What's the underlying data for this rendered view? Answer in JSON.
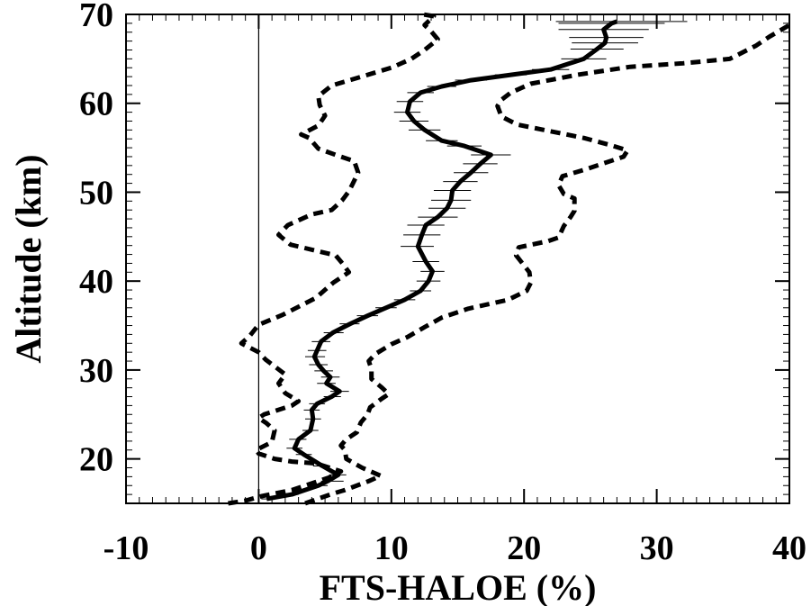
{
  "chart_data": {
    "type": "line",
    "title": "",
    "xlabel": "FTS-HALOE (%)",
    "ylabel": "Altitude (km)",
    "xlim": [
      -10,
      40
    ],
    "ylim": [
      15,
      70
    ],
    "xticks": [
      -10,
      0,
      10,
      20,
      30,
      40
    ],
    "yticks": [
      20,
      30,
      40,
      50,
      60,
      70
    ],
    "grid": false,
    "legend": "none",
    "reference_line": {
      "x": 0
    },
    "series": [
      {
        "style": "solid",
        "color": "#000000",
        "points": [
          [
            0.6,
            15.5
          ],
          [
            2.5,
            16
          ],
          [
            4.5,
            17
          ],
          [
            5.2,
            17.5
          ],
          [
            6.0,
            18.2
          ],
          [
            4.8,
            19.2
          ],
          [
            3.4,
            20.5
          ],
          [
            2.7,
            21.2
          ],
          [
            3.0,
            22.2
          ],
          [
            3.9,
            23.2
          ],
          [
            4.1,
            24.5
          ],
          [
            4.0,
            25.5
          ],
          [
            4.4,
            26.2
          ],
          [
            5.5,
            27.0
          ],
          [
            6.1,
            27.6
          ],
          [
            5.1,
            28.5
          ],
          [
            5.4,
            29.2
          ],
          [
            4.9,
            29.9
          ],
          [
            4.5,
            30.6
          ],
          [
            4.2,
            31.5
          ],
          [
            4.4,
            32.2
          ],
          [
            4.7,
            33.2
          ],
          [
            5.6,
            34.2
          ],
          [
            6.9,
            35.2
          ],
          [
            8.2,
            36.1
          ],
          [
            9.6,
            37.0
          ],
          [
            11.0,
            37.9
          ],
          [
            12.2,
            38.9
          ],
          [
            12.8,
            40.0
          ],
          [
            13.1,
            41.1
          ],
          [
            12.6,
            42.2
          ],
          [
            12.0,
            43.9
          ],
          [
            12.3,
            45.2
          ],
          [
            12.6,
            46.3
          ],
          [
            13.5,
            47.2
          ],
          [
            14.2,
            48.2
          ],
          [
            14.5,
            49.1
          ],
          [
            14.6,
            50.2
          ],
          [
            15.2,
            51.2
          ],
          [
            16.0,
            52.2
          ],
          [
            16.7,
            53.2
          ],
          [
            17.5,
            54.2
          ],
          [
            15.5,
            55.2
          ],
          [
            13.8,
            55.8
          ],
          [
            12.5,
            57.0
          ],
          [
            11.7,
            58.0
          ],
          [
            11.2,
            59.0
          ],
          [
            11.4,
            60.2
          ],
          [
            12.2,
            61.2
          ],
          [
            13.8,
            61.9
          ],
          [
            16.0,
            62.6
          ],
          [
            19.0,
            63.2
          ],
          [
            22.0,
            63.8
          ],
          [
            24.5,
            65.0
          ],
          [
            25.5,
            66.1
          ],
          [
            26.1,
            66.8
          ],
          [
            26.2,
            67.4
          ],
          [
            26.0,
            68.3
          ],
          [
            26.6,
            69.0
          ],
          [
            27.0,
            69.2
          ]
        ]
      },
      {
        "style": "dashed",
        "color": "#000000",
        "points": [
          [
            -2.3,
            15.0
          ],
          [
            -1.0,
            15.3
          ],
          [
            0.2,
            15.8
          ],
          [
            2.5,
            16.5
          ],
          [
            4.5,
            17.5
          ],
          [
            5.5,
            18.0
          ],
          [
            6.2,
            18.6
          ],
          [
            4.3,
            19.5
          ],
          [
            2.5,
            19.7
          ],
          [
            1.2,
            20.0
          ],
          [
            0.0,
            20.6
          ],
          [
            -0.2,
            21.0
          ],
          [
            1.0,
            21.9
          ],
          [
            1.2,
            23.2
          ],
          [
            0.6,
            24.0
          ],
          [
            0.0,
            24.6
          ],
          [
            0.4,
            25.0
          ],
          [
            2.5,
            26.0
          ],
          [
            3.0,
            26.5
          ],
          [
            2.0,
            27.4
          ],
          [
            1.5,
            28.5
          ],
          [
            2.0,
            29.5
          ],
          [
            0.5,
            31.2
          ],
          [
            0.0,
            32.0
          ],
          [
            -1.3,
            33.0
          ],
          [
            -0.7,
            33.8
          ],
          [
            0.0,
            35.1
          ],
          [
            1.8,
            36.2
          ],
          [
            4.3,
            38.1
          ],
          [
            5.6,
            39.8
          ],
          [
            6.8,
            41.0
          ],
          [
            6.3,
            42.0
          ],
          [
            5.8,
            42.9
          ],
          [
            2.4,
            44.1
          ],
          [
            1.5,
            45.2
          ],
          [
            2.2,
            46.3
          ],
          [
            4.0,
            47.5
          ],
          [
            5.5,
            48.0
          ],
          [
            6.3,
            49.1
          ],
          [
            6.8,
            50.1
          ],
          [
            7.1,
            51.0
          ],
          [
            7.5,
            52.2
          ],
          [
            7.2,
            53.5
          ],
          [
            6.0,
            54.1
          ],
          [
            4.5,
            54.9
          ],
          [
            3.8,
            56.1
          ],
          [
            3.2,
            56.5
          ],
          [
            4.5,
            57.5
          ],
          [
            5.0,
            58.6
          ],
          [
            4.6,
            59.8
          ],
          [
            4.5,
            60.8
          ],
          [
            5.5,
            62.0
          ],
          [
            7.3,
            62.8
          ],
          [
            10.0,
            64.0
          ],
          [
            11.5,
            65.0
          ],
          [
            12.5,
            66.0
          ],
          [
            13.5,
            67.2
          ],
          [
            13.0,
            68.1
          ],
          [
            12.5,
            68.8
          ],
          [
            13.2,
            69.8
          ],
          [
            12.4,
            70.0
          ]
        ]
      },
      {
        "style": "dashed",
        "color": "#000000",
        "points": [
          [
            3.5,
            15.0
          ],
          [
            5.4,
            16.0
          ],
          [
            6.5,
            16.5
          ],
          [
            8.3,
            17.5
          ],
          [
            9.2,
            18.1
          ],
          [
            7.8,
            19.0
          ],
          [
            6.6,
            20.0
          ],
          [
            6.5,
            21.0
          ],
          [
            6.2,
            21.5
          ],
          [
            6.6,
            22.2
          ],
          [
            7.4,
            23.0
          ],
          [
            7.7,
            24.1
          ],
          [
            8.2,
            25.0
          ],
          [
            8.4,
            25.8
          ],
          [
            9.3,
            26.8
          ],
          [
            9.8,
            27.3
          ],
          [
            9.3,
            28.0
          ],
          [
            8.5,
            29.0
          ],
          [
            8.5,
            30.1
          ],
          [
            8.3,
            31.0
          ],
          [
            8.8,
            31.8
          ],
          [
            10.0,
            32.9
          ],
          [
            11.2,
            33.7
          ],
          [
            12.6,
            34.9
          ],
          [
            13.8,
            35.9
          ],
          [
            15.8,
            36.9
          ],
          [
            18.8,
            37.9
          ],
          [
            20.2,
            38.9
          ],
          [
            20.5,
            39.8
          ],
          [
            20.4,
            41.0
          ],
          [
            19.4,
            42.9
          ],
          [
            19.6,
            43.8
          ],
          [
            21.8,
            44.5
          ],
          [
            22.6,
            44.9
          ],
          [
            23.0,
            46.2
          ],
          [
            23.5,
            47.2
          ],
          [
            23.8,
            47.9
          ],
          [
            23.8,
            49.3
          ],
          [
            23.0,
            49.8
          ],
          [
            22.6,
            50.8
          ],
          [
            22.9,
            51.8
          ],
          [
            24.7,
            52.6
          ],
          [
            25.9,
            53.2
          ],
          [
            27.5,
            54.0
          ],
          [
            27.8,
            54.7
          ],
          [
            26.5,
            55.3
          ],
          [
            24.5,
            56.1
          ],
          [
            21.5,
            57.0
          ],
          [
            19.5,
            57.6
          ],
          [
            18.3,
            58.5
          ],
          [
            18.0,
            59.7
          ],
          [
            18.3,
            60.4
          ],
          [
            19.0,
            61.2
          ],
          [
            20.5,
            62.2
          ],
          [
            24.0,
            63.2
          ],
          [
            28.0,
            64.1
          ],
          [
            32.0,
            64.5
          ],
          [
            35.5,
            65.0
          ],
          [
            37.5,
            66.5
          ],
          [
            38.5,
            67.5
          ],
          [
            40.0,
            68.8
          ]
        ]
      }
    ],
    "error_bars": {
      "orientation": "horizontal",
      "attached_to": "solid",
      "bars": [
        [
          0.2,
          1.0,
          15.5
        ],
        [
          2.0,
          3.0,
          16.0
        ],
        [
          4.0,
          5.2,
          17.0
        ],
        [
          4.7,
          6.4,
          17.5
        ],
        [
          5.3,
          6.6,
          18.2
        ],
        [
          4.1,
          5.4,
          19.2
        ],
        [
          2.8,
          4.0,
          20.5
        ],
        [
          2.1,
          3.3,
          21.2
        ],
        [
          2.3,
          3.6,
          22.2
        ],
        [
          3.3,
          4.5,
          23.2
        ],
        [
          3.5,
          4.7,
          24.5
        ],
        [
          3.4,
          4.6,
          25.5
        ],
        [
          3.8,
          5.0,
          26.2
        ],
        [
          4.9,
          6.2,
          27.0
        ],
        [
          5.4,
          6.8,
          27.6
        ],
        [
          4.4,
          5.8,
          28.5
        ],
        [
          4.7,
          6.1,
          29.2
        ],
        [
          4.2,
          5.6,
          29.9
        ],
        [
          3.8,
          5.2,
          30.6
        ],
        [
          3.5,
          5.0,
          31.5
        ],
        [
          3.7,
          5.1,
          32.2
        ],
        [
          4.0,
          5.4,
          33.2
        ],
        [
          4.9,
          6.4,
          34.2
        ],
        [
          6.1,
          7.6,
          35.2
        ],
        [
          7.4,
          9.0,
          36.1
        ],
        [
          8.8,
          10.4,
          37.0
        ],
        [
          10.2,
          11.8,
          37.9
        ],
        [
          11.4,
          13.0,
          38.9
        ],
        [
          11.9,
          13.7,
          40.0
        ],
        [
          12.2,
          14.0,
          41.1
        ],
        [
          11.6,
          13.6,
          42.2
        ],
        [
          10.7,
          13.2,
          43.9
        ],
        [
          10.9,
          13.7,
          45.2
        ],
        [
          11.2,
          14.0,
          46.3
        ],
        [
          12.0,
          15.0,
          47.2
        ],
        [
          12.8,
          15.6,
          48.2
        ],
        [
          13.0,
          16.0,
          49.1
        ],
        [
          13.2,
          16.0,
          50.2
        ],
        [
          13.9,
          16.5,
          51.2
        ],
        [
          14.7,
          17.3,
          52.2
        ],
        [
          15.4,
          18.0,
          53.2
        ],
        [
          16.0,
          19.0,
          54.2
        ],
        [
          14.2,
          16.8,
          55.2
        ],
        [
          12.6,
          15.0,
          55.8
        ],
        [
          11.3,
          13.7,
          57.0
        ],
        [
          10.6,
          12.8,
          58.0
        ],
        [
          10.2,
          12.2,
          59.0
        ],
        [
          10.4,
          12.4,
          60.2
        ],
        [
          11.2,
          13.2,
          61.2
        ],
        [
          12.7,
          14.9,
          61.9
        ],
        [
          14.8,
          17.2,
          62.6
        ],
        [
          17.8,
          20.2,
          63.2
        ],
        [
          20.6,
          23.4,
          63.8
        ],
        [
          22.8,
          26.2,
          65.0
        ],
        [
          23.5,
          27.5,
          66.1
        ],
        [
          23.6,
          28.6,
          66.8
        ],
        [
          23.4,
          29.0,
          67.4
        ],
        [
          22.6,
          29.4,
          68.3
        ],
        [
          22.6,
          30.6,
          69.0
        ],
        [
          22.4,
          32.3,
          69.2
        ]
      ]
    }
  }
}
